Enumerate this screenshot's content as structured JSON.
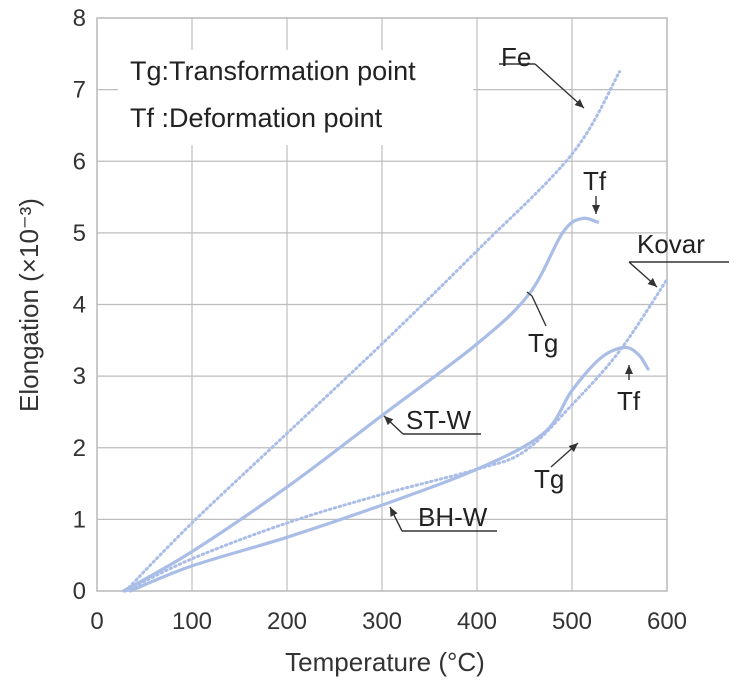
{
  "chart_data": {
    "type": "line",
    "title": "",
    "xlabel": "Temperature (°C)",
    "ylabel": "Elongation (×10⁻³)",
    "xlim": [
      0,
      600
    ],
    "ylim": [
      0,
      8
    ],
    "x_ticks": [
      "0",
      "100",
      "200",
      "300",
      "400",
      "500",
      "600"
    ],
    "y_ticks": [
      "0",
      "1",
      "2",
      "3",
      "4",
      "5",
      "6",
      "7",
      "8"
    ],
    "grid": true,
    "notes": [
      "Tg:Transformation point",
      "Tf :Deformation point"
    ],
    "series": [
      {
        "name": "Fe",
        "style": "dotted",
        "color": "#a9bde6",
        "points": [
          [
            30,
            0
          ],
          [
            100,
            0.95
          ],
          [
            200,
            2.2
          ],
          [
            300,
            3.45
          ],
          [
            400,
            4.75
          ],
          [
            500,
            6.1
          ],
          [
            550,
            7.25
          ]
        ]
      },
      {
        "name": "ST-W",
        "style": "solid",
        "color": "#a9bde6",
        "points": [
          [
            28,
            0
          ],
          [
            100,
            0.55
          ],
          [
            200,
            1.45
          ],
          [
            300,
            2.45
          ],
          [
            400,
            3.45
          ],
          [
            455,
            4.15
          ],
          [
            490,
            5.0
          ],
          [
            510,
            5.2
          ],
          [
            527,
            5.15
          ]
        ]
      },
      {
        "name": "Kovar",
        "style": "dotted",
        "color": "#a9bde6",
        "points": [
          [
            30,
            0
          ],
          [
            100,
            0.45
          ],
          [
            200,
            0.95
          ],
          [
            300,
            1.35
          ],
          [
            400,
            1.7
          ],
          [
            450,
            1.95
          ],
          [
            500,
            2.6
          ],
          [
            550,
            3.35
          ],
          [
            600,
            4.35
          ]
        ]
      },
      {
        "name": "BH-W",
        "style": "solid",
        "color": "#a9bde6",
        "points": [
          [
            35,
            0
          ],
          [
            100,
            0.35
          ],
          [
            200,
            0.75
          ],
          [
            300,
            1.2
          ],
          [
            400,
            1.7
          ],
          [
            470,
            2.2
          ],
          [
            500,
            2.8
          ],
          [
            530,
            3.25
          ],
          [
            555,
            3.4
          ],
          [
            570,
            3.3
          ],
          [
            580,
            3.1
          ]
        ]
      }
    ],
    "annotations": [
      {
        "label": "Fe",
        "points_to": [
          515,
          6.7
        ]
      },
      {
        "label": "Tf",
        "points_to": [
          508,
          5.2
        ]
      },
      {
        "label": "Kovar",
        "points_to": [
          585,
          4.2
        ]
      },
      {
        "label": "Tg",
        "points_to": [
          455,
          4.15
        ]
      },
      {
        "label": "ST-W",
        "points_to": [
          302,
          2.45
        ]
      },
      {
        "label": "Tf",
        "points_to": [
          555,
          3.4
        ]
      },
      {
        "label": "Tg",
        "points_to": [
          488,
          2.35
        ]
      },
      {
        "label": "BH-W",
        "points_to": [
          305,
          1.15
        ]
      }
    ]
  }
}
